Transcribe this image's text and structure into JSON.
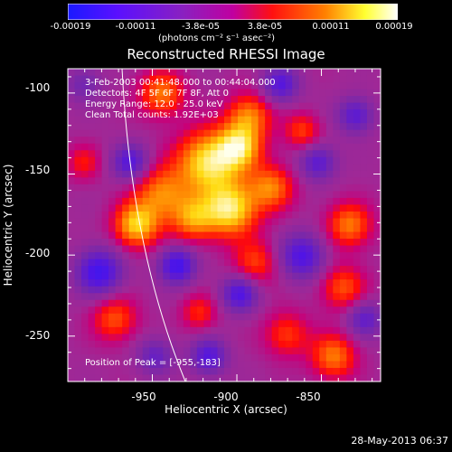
{
  "colorbar": {
    "ticks": [
      "-0.00019",
      "-0.00011",
      "-3.8e-05",
      "3.8e-05",
      "0.00011",
      "0.00019"
    ],
    "units": "(photons cm⁻² s⁻¹ asec⁻²)",
    "colors": [
      "#1a1aff",
      "#6a1aff",
      "#a000ff",
      "#d000b0",
      "#ff0000",
      "#ff8000",
      "#ffff00",
      "#ffffff"
    ]
  },
  "image": {
    "title": "Reconstructed RHESSI Image",
    "time_range": "3-Feb-2003 00:41:48.000 to 00:44:04.000",
    "detectors": "Detectors: 4F 5F 6F 7F 8F, Att 0",
    "energy_range": "Energy Range: 12.0 - 25.0 keV",
    "clean_counts": "Clean    Total counts: 1.92E+03",
    "peak_position": "Position of Peak = [-955,-183]",
    "xlabel": "Heliocentric X (arcsec)",
    "ylabel": "Heliocentric Y (arcsec)",
    "xticks": [
      "-950",
      "-900",
      "-850"
    ],
    "yticks": [
      "-100",
      "-150",
      "-200",
      "-250"
    ],
    "timestamp": "28-May-2013 06:37"
  },
  "chart_data": {
    "type": "heatmap",
    "title": "Reconstructed RHESSI Image",
    "xlabel": "Heliocentric X (arcsec)",
    "ylabel": "Heliocentric Y (arcsec)",
    "xlim": [
      -1000,
      -815
    ],
    "ylim": [
      -278,
      -85
    ],
    "value_range": [
      -0.00019,
      0.00019
    ],
    "peak": [
      -955,
      -183
    ]
  }
}
